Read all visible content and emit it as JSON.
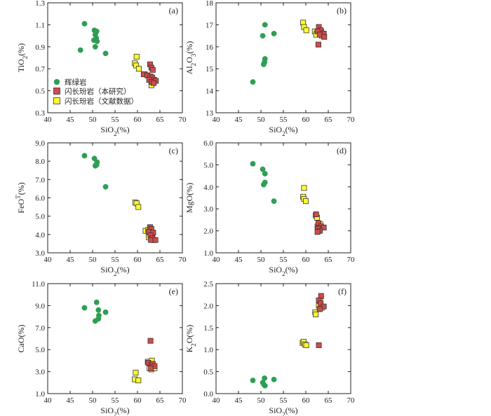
{
  "colors": {
    "gabbro": "#2f9e54",
    "diorite_this": "#d24a4a",
    "diorite_lit": "#ffff33",
    "edge": "#333333"
  },
  "legend": {
    "gabbro": "辉绿岩",
    "diorite_this": "闪长玢岩（本研究）",
    "diorite_lit": "闪长玢岩（文献数据）"
  },
  "chart_data": [
    {
      "id": "a",
      "type": "scatter",
      "panel_label": "(a)",
      "xlabel": "SiO2(%)",
      "ylabel": "TiO2(%)",
      "xlim": [
        40,
        70
      ],
      "ylim": [
        0.3,
        1.3
      ],
      "xticks": [
        40,
        45,
        50,
        55,
        60,
        65,
        70
      ],
      "yticks": [
        0.3,
        0.5,
        0.7,
        0.9,
        1.1,
        1.3
      ],
      "ytick_labels": [
        "0.3",
        "0.5",
        "0.7",
        "0.9",
        "1.1",
        "1.3"
      ],
      "xtick_labels": [
        "40",
        "45",
        "50",
        "55",
        "60",
        "65",
        "70"
      ],
      "series": [
        {
          "name": "gabbro",
          "marker": "circle",
          "points": [
            [
              48.2,
              1.11
            ],
            [
              50.4,
              1.05
            ],
            [
              50.9,
              1.04
            ],
            [
              50.6,
              1.01
            ],
            [
              50.8,
              0.98
            ],
            [
              50.3,
              0.96
            ],
            [
              51.0,
              0.95
            ],
            [
              47.3,
              0.87
            ],
            [
              50.6,
              0.9
            ],
            [
              52.9,
              0.84
            ]
          ]
        },
        {
          "name": "diorite_lit",
          "marker": "square",
          "points": [
            [
              59.8,
              0.81
            ],
            [
              59.4,
              0.75
            ],
            [
              59.7,
              0.73
            ],
            [
              60.3,
              0.7
            ],
            [
              61.6,
              0.65
            ],
            [
              62.7,
              0.62
            ],
            [
              63.2,
              0.6
            ],
            [
              63.4,
              0.57
            ],
            [
              63.1,
              0.55
            ]
          ]
        },
        {
          "name": "diorite_this",
          "marker": "square",
          "points": [
            [
              62.8,
              0.74
            ],
            [
              63.1,
              0.71
            ],
            [
              63.4,
              0.69
            ],
            [
              61.4,
              0.65
            ],
            [
              62.2,
              0.64
            ],
            [
              62.9,
              0.63
            ],
            [
              63.3,
              0.62
            ],
            [
              63.7,
              0.6
            ],
            [
              62.6,
              0.6
            ],
            [
              63.2,
              0.58
            ],
            [
              64.1,
              0.59
            ],
            [
              63.6,
              0.57
            ]
          ]
        }
      ]
    },
    {
      "id": "b",
      "type": "scatter",
      "panel_label": "(b)",
      "xlabel": "SiO2(%)",
      "ylabel": "Al2O3(%)",
      "xlim": [
        40,
        70
      ],
      "ylim": [
        13,
        18
      ],
      "xticks": [
        40,
        45,
        50,
        55,
        60,
        65,
        70
      ],
      "yticks": [
        13,
        14,
        15,
        16,
        17,
        18
      ],
      "ytick_labels": [
        "13",
        "14",
        "15",
        "16",
        "17",
        "18"
      ],
      "xtick_labels": [
        "40",
        "45",
        "50",
        "55",
        "60",
        "65",
        "70"
      ],
      "series": [
        {
          "name": "gabbro",
          "marker": "circle",
          "points": [
            [
              50.9,
              17.0
            ],
            [
              52.9,
              16.6
            ],
            [
              50.4,
              16.5
            ],
            [
              50.9,
              15.45
            ],
            [
              50.8,
              15.3
            ],
            [
              50.6,
              15.2
            ],
            [
              48.2,
              14.4
            ]
          ]
        },
        {
          "name": "diorite_lit",
          "marker": "square",
          "points": [
            [
              59.4,
              17.1
            ],
            [
              59.6,
              16.9
            ],
            [
              60.1,
              16.75
            ],
            [
              62.0,
              16.7
            ],
            [
              62.5,
              16.6
            ],
            [
              63.1,
              16.65
            ],
            [
              63.4,
              16.7
            ],
            [
              62.3,
              16.55
            ],
            [
              63.6,
              16.5
            ]
          ]
        },
        {
          "name": "diorite_this",
          "marker": "square",
          "points": [
            [
              62.9,
              16.9
            ],
            [
              63.3,
              16.75
            ],
            [
              62.6,
              16.7
            ],
            [
              64.0,
              16.6
            ],
            [
              63.1,
              16.55
            ],
            [
              64.1,
              16.45
            ],
            [
              62.8,
              16.1
            ]
          ]
        }
      ]
    },
    {
      "id": "c",
      "type": "scatter",
      "panel_label": "(c)",
      "xlabel": "SiO2(%)",
      "ylabel": "FeOT(%)",
      "xlim": [
        40,
        70
      ],
      "ylim": [
        3.0,
        9.0
      ],
      "xticks": [
        40,
        45,
        50,
        55,
        60,
        65,
        70
      ],
      "yticks": [
        3,
        4,
        5,
        6,
        7,
        8,
        9
      ],
      "ytick_labels": [
        "3.0",
        "4.0",
        "5.0",
        "6.0",
        "7.0",
        "8.0",
        "9.0"
      ],
      "xtick_labels": [
        "40",
        "45",
        "50",
        "55",
        "60",
        "65",
        "70"
      ],
      "series": [
        {
          "name": "gabbro",
          "marker": "circle",
          "points": [
            [
              48.2,
              8.3
            ],
            [
              50.4,
              8.15
            ],
            [
              51.0,
              7.95
            ],
            [
              50.9,
              7.8
            ],
            [
              50.6,
              7.75
            ],
            [
              52.9,
              6.6
            ]
          ]
        },
        {
          "name": "diorite_lit",
          "marker": "square",
          "points": [
            [
              59.5,
              5.75
            ],
            [
              59.8,
              5.7
            ],
            [
              60.2,
              5.5
            ],
            [
              61.8,
              4.2
            ],
            [
              62.4,
              4.25
            ],
            [
              62.9,
              4.05
            ],
            [
              63.3,
              3.9
            ],
            [
              63.7,
              3.7
            ],
            [
              62.5,
              3.85
            ]
          ]
        },
        {
          "name": "diorite_this",
          "marker": "square",
          "points": [
            [
              62.8,
              4.4
            ],
            [
              63.1,
              4.3
            ],
            [
              62.5,
              4.15
            ],
            [
              63.5,
              4.1
            ],
            [
              62.9,
              3.95
            ],
            [
              63.3,
              3.8
            ],
            [
              63.0,
              3.7
            ],
            [
              64.0,
              3.7
            ]
          ]
        }
      ]
    },
    {
      "id": "d",
      "type": "scatter",
      "panel_label": "(d)",
      "xlabel": "SiO2(%)",
      "ylabel": "MgO(%)",
      "xlim": [
        40,
        70
      ],
      "ylim": [
        1.0,
        6.0
      ],
      "xticks": [
        40,
        45,
        50,
        55,
        60,
        65,
        70
      ],
      "yticks": [
        1,
        2,
        3,
        4,
        5,
        6
      ],
      "ytick_labels": [
        "1.0",
        "2.0",
        "3.0",
        "4.0",
        "5.0",
        "6.0"
      ],
      "xtick_labels": [
        "40",
        "45",
        "50",
        "55",
        "60",
        "65",
        "70"
      ],
      "series": [
        {
          "name": "gabbro",
          "marker": "circle",
          "points": [
            [
              48.2,
              5.05
            ],
            [
              50.4,
              4.8
            ],
            [
              50.9,
              4.6
            ],
            [
              50.9,
              4.2
            ],
            [
              50.6,
              4.1
            ],
            [
              52.9,
              3.35
            ]
          ]
        },
        {
          "name": "diorite_lit",
          "marker": "square",
          "points": [
            [
              59.6,
              3.95
            ],
            [
              59.4,
              3.55
            ],
            [
              59.6,
              3.45
            ],
            [
              60.0,
              3.35
            ],
            [
              62.2,
              2.7
            ],
            [
              62.5,
              2.6
            ],
            [
              63.2,
              2.3
            ],
            [
              62.6,
              2.2
            ],
            [
              63.1,
              2.05
            ]
          ]
        },
        {
          "name": "diorite_this",
          "marker": "square",
          "points": [
            [
              62.3,
              2.75
            ],
            [
              62.8,
              2.35
            ],
            [
              63.4,
              2.2
            ],
            [
              64.0,
              2.15
            ],
            [
              62.7,
              2.1
            ],
            [
              63.1,
              2.0
            ],
            [
              62.6,
              1.95
            ]
          ]
        }
      ]
    },
    {
      "id": "e",
      "type": "scatter",
      "panel_label": "(e)",
      "xlabel": "SiO2(%)",
      "ylabel": "CaO(%)",
      "xlim": [
        40,
        70
      ],
      "ylim": [
        1.0,
        11.0
      ],
      "xticks": [
        40,
        45,
        50,
        55,
        60,
        65,
        70
      ],
      "yticks": [
        1,
        3,
        5,
        7,
        9,
        11
      ],
      "ytick_labels": [
        "1.0",
        "3.0",
        "5.0",
        "7.0",
        "9.0",
        "11.0"
      ],
      "xtick_labels": [
        "40",
        "45",
        "50",
        "55",
        "60",
        "65",
        "70"
      ],
      "series": [
        {
          "name": "gabbro",
          "marker": "circle",
          "points": [
            [
              50.9,
              9.3
            ],
            [
              48.2,
              8.8
            ],
            [
              51.3,
              8.6
            ],
            [
              52.9,
              8.4
            ],
            [
              51.4,
              8.1
            ],
            [
              51.3,
              7.8
            ],
            [
              50.6,
              7.6
            ]
          ]
        },
        {
          "name": "diorite_lit",
          "marker": "square",
          "points": [
            [
              59.6,
              2.9
            ],
            [
              59.4,
              2.3
            ],
            [
              60.2,
              2.2
            ],
            [
              62.3,
              3.9
            ],
            [
              62.7,
              3.3
            ],
            [
              63.1,
              3.2
            ],
            [
              63.4,
              3.4
            ],
            [
              63.8,
              3.3
            ],
            [
              63.2,
              4.0
            ]
          ]
        },
        {
          "name": "diorite_this",
          "marker": "square",
          "points": [
            [
              62.9,
              5.8
            ],
            [
              62.4,
              3.8
            ],
            [
              63.1,
              3.6
            ],
            [
              63.4,
              3.7
            ],
            [
              63.8,
              3.5
            ],
            [
              63.0,
              3.3
            ]
          ]
        }
      ]
    },
    {
      "id": "f",
      "type": "scatter",
      "panel_label": "(f)",
      "xlabel": "SiO2(%)",
      "ylabel": "K2O(%)",
      "xlim": [
        40,
        70
      ],
      "ylim": [
        0,
        2.5
      ],
      "xticks": [
        40,
        45,
        50,
        55,
        60,
        65,
        70
      ],
      "yticks": [
        0,
        0.5,
        1.0,
        1.5,
        2.0,
        2.5
      ],
      "ytick_labels": [
        "0.0",
        "0.5",
        "1.0",
        "1.5",
        "2.0",
        "2.5"
      ],
      "xtick_labels": [
        "40",
        "45",
        "50",
        "55",
        "60",
        "65",
        "70"
      ],
      "series": [
        {
          "name": "gabbro",
          "marker": "circle",
          "points": [
            [
              48.2,
              0.3
            ],
            [
              50.8,
              0.35
            ],
            [
              52.9,
              0.32
            ],
            [
              50.4,
              0.25
            ],
            [
              50.7,
              0.2
            ],
            [
              50.9,
              0.18
            ]
          ]
        },
        {
          "name": "diorite_lit",
          "marker": "square",
          "points": [
            [
              59.3,
              1.15
            ],
            [
              59.5,
              1.18
            ],
            [
              59.8,
              1.12
            ],
            [
              60.1,
              1.1
            ],
            [
              62.1,
              1.85
            ],
            [
              62.2,
              1.8
            ],
            [
              62.9,
              2.0
            ],
            [
              63.5,
              1.95
            ],
            [
              63.2,
              2.1
            ]
          ]
        },
        {
          "name": "diorite_this",
          "marker": "square",
          "points": [
            [
              63.4,
              2.22
            ],
            [
              62.9,
              2.12
            ],
            [
              63.3,
              2.05
            ],
            [
              64.0,
              1.98
            ],
            [
              63.1,
              1.92
            ],
            [
              62.9,
              1.1
            ]
          ]
        }
      ]
    }
  ]
}
